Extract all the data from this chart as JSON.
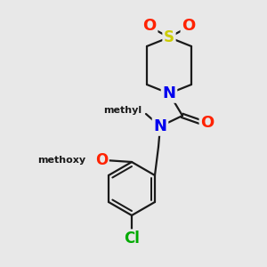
{
  "bg_color": "#e8e8e8",
  "bond_color": "#1a1a1a",
  "bond_width": 1.6,
  "atom_colors": {
    "S": "#cccc00",
    "O": "#ff2200",
    "N": "#0000ee",
    "Cl": "#00aa00",
    "C": "#1a1a1a"
  },
  "font_size": 11,
  "fig_size": [
    3.0,
    3.0
  ],
  "dpi": 100
}
